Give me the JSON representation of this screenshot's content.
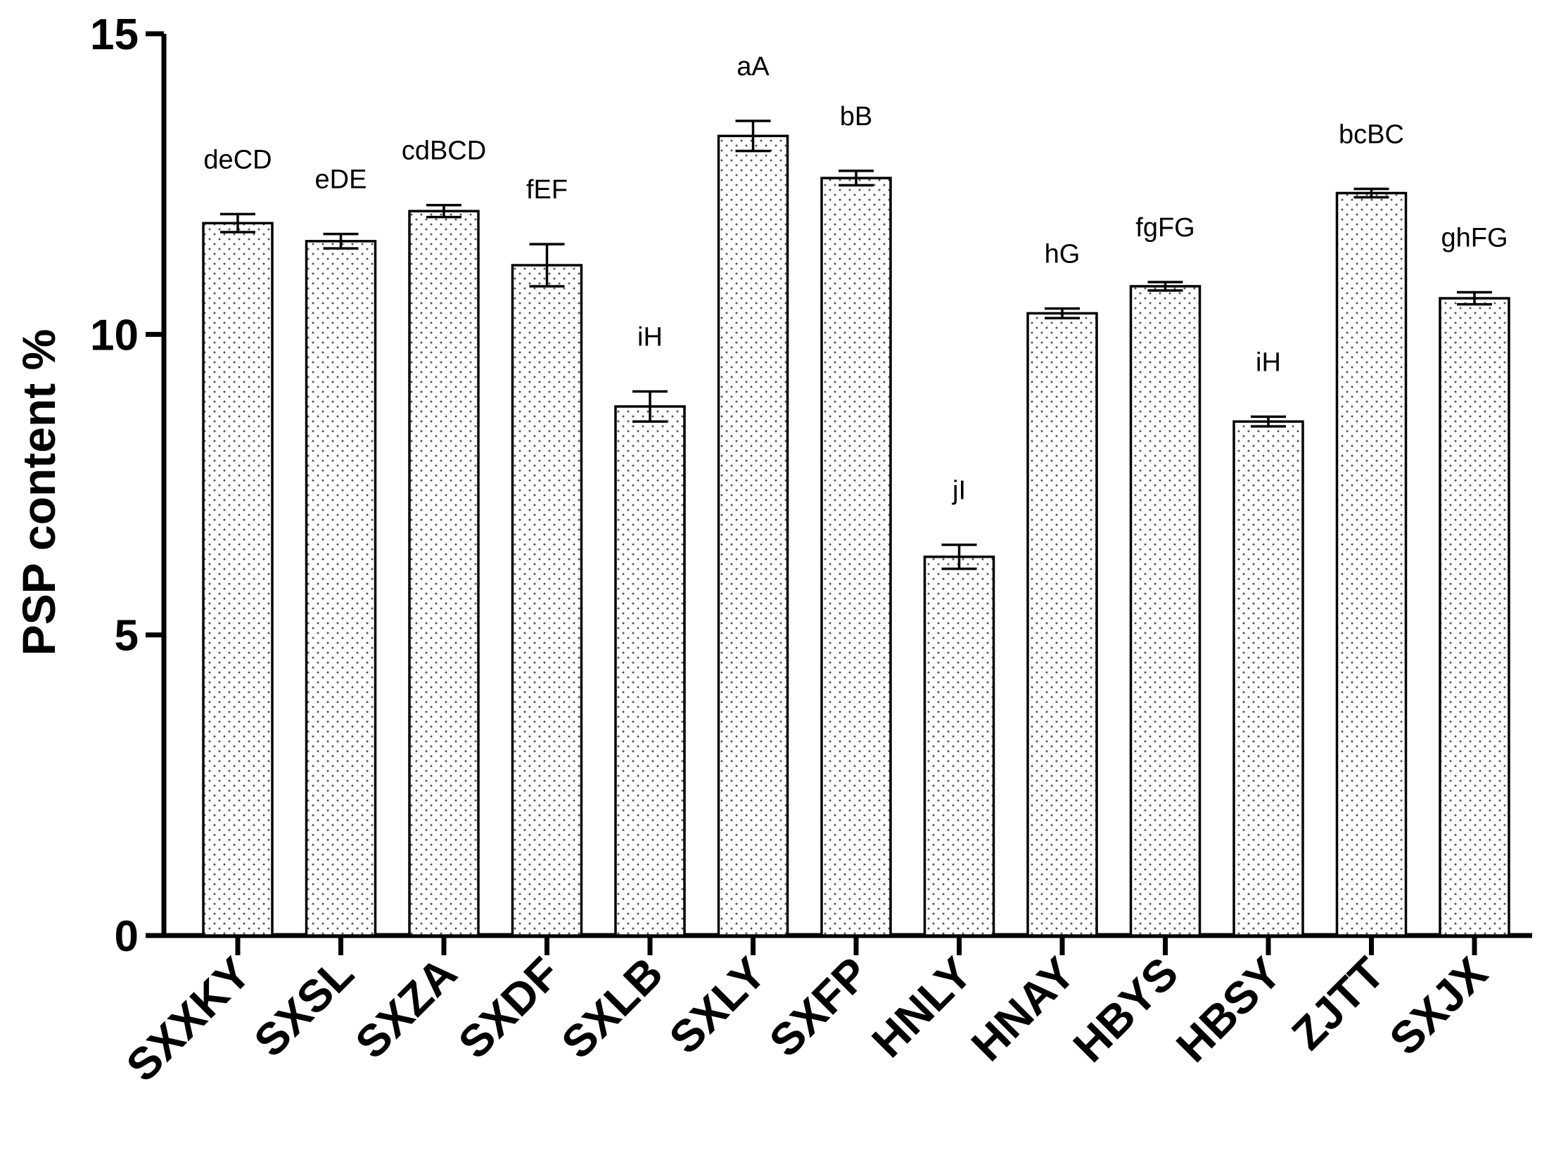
{
  "chart_data": {
    "type": "bar",
    "title": "",
    "xlabel": "",
    "ylabel": "PSP content %",
    "ylim": [
      0,
      15
    ],
    "yticks": [
      0,
      5,
      10,
      15
    ],
    "grid": false,
    "legend": "none",
    "bar_pattern": "dotted",
    "categories": [
      "SXXKY",
      "SXSL",
      "SXZA",
      "SXDF",
      "SXLB",
      "SXLY",
      "SXFP",
      "HNLY",
      "HNAY",
      "HBYS",
      "HBSY",
      "ZJTT",
      "SXJX"
    ],
    "values": [
      11.85,
      11.55,
      12.05,
      11.15,
      8.8,
      13.3,
      12.6,
      6.3,
      10.35,
      10.8,
      8.55,
      12.35,
      10.6
    ],
    "errors": [
      0.15,
      0.12,
      0.1,
      0.35,
      0.25,
      0.25,
      0.12,
      0.2,
      0.08,
      0.07,
      0.08,
      0.07,
      0.1
    ],
    "significance_labels": [
      "deCD",
      "eDE",
      "cdBCD",
      "fEF",
      "iH",
      "aA",
      "bB",
      "jI",
      "hG",
      "fgFG",
      "iH",
      "bcBC",
      "ghFG"
    ],
    "colors": {
      "bar_fill": "#ffffff",
      "bar_stroke": "#000000",
      "dot": "#555555"
    }
  }
}
